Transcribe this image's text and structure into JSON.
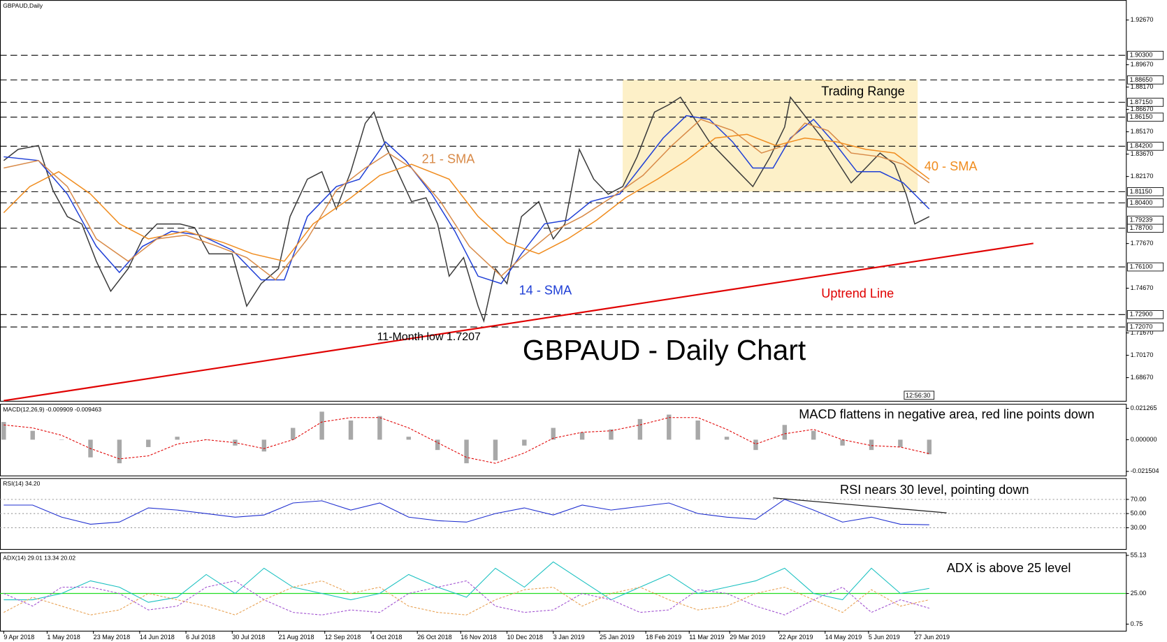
{
  "chart_data": [
    {
      "type": "line",
      "title": "GBPAUD,Daily",
      "heading": "GBPAUD - Daily Chart",
      "time": "12:56:30",
      "xlim": [
        0,
        388
      ],
      "xticks": [
        {
          "value": 0,
          "label": "9 Apr 2018"
        },
        {
          "value": 15,
          "label": "1 May 2018"
        },
        {
          "value": 31,
          "label": "23 May 2018"
        },
        {
          "value": 47,
          "label": "14 Jun 2018"
        },
        {
          "value": 63,
          "label": "6 Jul 2018"
        },
        {
          "value": 79,
          "label": "30 Jul 2018"
        },
        {
          "value": 95,
          "label": "21 Aug 2018"
        },
        {
          "value": 111,
          "label": "12 Sep 2018"
        },
        {
          "value": 127,
          "label": "4 Oct 2018"
        },
        {
          "value": 143,
          "label": "26 Oct 2018"
        },
        {
          "value": 158,
          "label": "16 Nov 2018"
        },
        {
          "value": 174,
          "label": "10 Dec 2018"
        },
        {
          "value": 190,
          "label": "3 Jan 2019"
        },
        {
          "value": 206,
          "label": "25 Jan 2019"
        },
        {
          "value": 222,
          "label": "18 Feb 2019"
        },
        {
          "value": 237,
          "label": "11 Mar 2019"
        },
        {
          "value": 251,
          "label": "29 Mar 2019"
        },
        {
          "value": 268,
          "label": "22 Apr 2019"
        },
        {
          "value": 284,
          "label": "14 May 2019"
        },
        {
          "value": 299,
          "label": "5 Jun 2019"
        },
        {
          "value": 315,
          "label": "27 Jun 2019"
        }
      ],
      "ylim": [
        1.6711,
        1.9401
      ],
      "yticks": [
        {
          "value": 1.6867,
          "label": "1.68670"
        },
        {
          "value": 1.7017,
          "label": "1.70170"
        },
        {
          "value": 1.7167,
          "label": "1.71670"
        },
        {
          "value": 1.7467,
          "label": "1.74670"
        },
        {
          "value": 1.7767,
          "label": "1.77670"
        },
        {
          "value": 1.8217,
          "label": "1.82170"
        },
        {
          "value": 1.8367,
          "label": "1.83670"
        },
        {
          "value": 1.8517,
          "label": "1.85170"
        },
        {
          "value": 1.8667,
          "label": "1.86670"
        },
        {
          "value": 1.8817,
          "label": "1.88170"
        },
        {
          "value": 1.8967,
          "label": "1.89670"
        },
        {
          "value": 1.9267,
          "label": "1.92670"
        }
      ],
      "levels": [
        {
          "value": 1.903,
          "label": "1.90300"
        },
        {
          "value": 1.8865,
          "label": "1.88650"
        },
        {
          "value": 1.8715,
          "label": "1.87150"
        },
        {
          "value": 1.8615,
          "label": "1.86150"
        },
        {
          "value": 1.842,
          "label": "1.84200"
        },
        {
          "value": 1.8115,
          "label": "1.81150"
        },
        {
          "value": 1.804,
          "label": "1.80400"
        },
        {
          "value": 1.787,
          "label": "1.78700"
        },
        {
          "value": 1.761,
          "label": "1.76100"
        },
        {
          "value": 1.729,
          "label": "1.72900"
        },
        {
          "value": 1.7207,
          "label": "1.72070"
        }
      ],
      "last_price": {
        "value": 1.79239,
        "label": "1.79239"
      },
      "series": [
        {
          "color": "#3a3a3a",
          "x": [
            0,
            5,
            12,
            17,
            22,
            27,
            32,
            37,
            43,
            48,
            53,
            61,
            66,
            71,
            79,
            84,
            89,
            95,
            99,
            105,
            110,
            115,
            120,
            125,
            128,
            132,
            135,
            141,
            146,
            150,
            154,
            159,
            164,
            166,
            170,
            174,
            179,
            185,
            190,
            194,
            199,
            204,
            209,
            214,
            219,
            225,
            230,
            234,
            239,
            244,
            249,
            254,
            259,
            265,
            270,
            272,
            277,
            283,
            288,
            293,
            298,
            303,
            308,
            312,
            315,
            320
          ],
          "values": [
            1.8324,
            1.8399,
            1.8424,
            1.8124,
            1.7948,
            1.7898,
            1.7648,
            1.7447,
            1.7598,
            1.7798,
            1.7898,
            1.7898,
            1.7873,
            1.7698,
            1.7698,
            1.7347,
            1.7498,
            1.7598,
            1.7948,
            1.8199,
            1.8249,
            1.7998,
            1.8249,
            1.8574,
            1.8649,
            1.8424,
            1.8299,
            1.8048,
            1.8074,
            1.7898,
            1.7548,
            1.7673,
            1.7347,
            1.7247,
            1.7598,
            1.7498,
            1.7948,
            1.8048,
            1.7798,
            1.7898,
            1.8399,
            1.8199,
            1.8098,
            1.8149,
            1.8349,
            1.8649,
            1.8699,
            1.8749,
            1.8599,
            1.8449,
            1.8349,
            1.8249,
            1.8149,
            1.8349,
            1.8549,
            1.8749,
            1.8624,
            1.8474,
            1.8324,
            1.8174,
            1.8274,
            1.8374,
            1.8299,
            1.8098,
            1.7898,
            1.7948
          ]
        },
        {
          "name": "14 - SMA",
          "color": "#1f3fd6",
          "x": [
            0,
            12,
            22,
            32,
            40,
            48,
            58,
            68,
            79,
            89,
            97,
            105,
            115,
            123,
            132,
            139,
            148,
            156,
            164,
            172,
            179,
            187,
            195,
            203,
            213,
            221,
            228,
            236,
            244,
            252,
            259,
            266,
            272,
            280,
            288,
            295,
            303,
            311,
            320
          ],
          "values": [
            1.8349,
            1.8324,
            1.8099,
            1.7748,
            1.7573,
            1.7748,
            1.7849,
            1.7823,
            1.7723,
            1.7523,
            1.7523,
            1.7949,
            1.8149,
            1.8199,
            1.8449,
            1.8324,
            1.8099,
            1.7849,
            1.7548,
            1.7498,
            1.7698,
            1.7899,
            1.7924,
            1.8049,
            1.8099,
            1.8299,
            1.8475,
            1.8625,
            1.86,
            1.8449,
            1.8274,
            1.8274,
            1.8475,
            1.86,
            1.8424,
            1.8249,
            1.8249,
            1.8174,
            1.7999
          ]
        },
        {
          "name": "21 - SMA",
          "color": "#d88a48",
          "x": [
            0,
            12,
            22,
            32,
            43,
            53,
            63,
            74,
            84,
            94,
            105,
            115,
            125,
            133,
            141,
            151,
            161,
            172,
            179,
            190,
            200,
            210,
            221,
            231,
            241,
            252,
            262,
            270,
            277,
            285,
            293,
            303,
            311,
            320
          ],
          "values": [
            1.8274,
            1.8324,
            1.8149,
            1.7798,
            1.7648,
            1.7798,
            1.7823,
            1.7748,
            1.7673,
            1.7523,
            1.7798,
            1.8124,
            1.8274,
            1.8374,
            1.8274,
            1.8049,
            1.7748,
            1.7548,
            1.7673,
            1.7849,
            1.7949,
            1.8074,
            1.8224,
            1.8424,
            1.86,
            1.8525,
            1.8374,
            1.8424,
            1.8575,
            1.8525,
            1.8374,
            1.8349,
            1.8299,
            1.8174
          ]
        },
        {
          "name": "40 - SMA",
          "color": "#f08c1e",
          "x": [
            0,
            9,
            19,
            30,
            40,
            50,
            63,
            76,
            86,
            97,
            107,
            120,
            130,
            141,
            154,
            164,
            174,
            185,
            195,
            205,
            215,
            226,
            236,
            246,
            257,
            267,
            277,
            288,
            298,
            308,
            320
          ],
          "values": [
            1.7974,
            1.8149,
            1.8249,
            1.8099,
            1.7899,
            1.7798,
            1.7849,
            1.7773,
            1.7698,
            1.7648,
            1.7899,
            1.8074,
            1.8224,
            1.8299,
            1.8199,
            1.7949,
            1.7773,
            1.7698,
            1.7798,
            1.7924,
            1.8074,
            1.8199,
            1.8324,
            1.8475,
            1.85,
            1.8424,
            1.8475,
            1.8449,
            1.8399,
            1.8374,
            1.8199
          ]
        }
      ],
      "trendline": {
        "color": "#e00000",
        "x": [
          0,
          356
        ],
        "values": [
          1.6712,
          1.7768
        ]
      },
      "range_box": {
        "color": "#fdf0c8",
        "x": [
          214,
          316
        ],
        "values": [
          1.8865,
          1.8115
        ]
      },
      "annotations": [
        "Trading Range",
        "Uptrend Line",
        "11-Month low 1.7207"
      ]
    },
    {
      "type": "bar",
      "title": "MACD(12,26,9) -0.009909 -0.009463",
      "note": "MACD flattens in negative area, red line points down",
      "ylim": [
        -0.0243,
        0.0243
      ],
      "yticks": [
        {
          "value": 0.021265,
          "label": "0.021265"
        },
        {
          "value": 0,
          "label": "0.000000"
        },
        {
          "value": -0.021504,
          "label": "-0.021504"
        }
      ],
      "x": [
        0,
        10,
        20,
        30,
        40,
        50,
        60,
        70,
        80,
        90,
        100,
        110,
        120,
        130,
        140,
        150,
        160,
        170,
        180,
        190,
        200,
        210,
        220,
        230,
        240,
        250,
        260,
        270,
        280,
        290,
        300,
        310,
        320
      ],
      "series": [
        {
          "kind": "bar",
          "color": "#a8a8a8",
          "values": [
            0.012,
            0.006,
            0,
            -0.012,
            -0.016,
            -0.005,
            0.002,
            0,
            -0.004,
            -0.008,
            0.008,
            0.019,
            0.013,
            0.016,
            0.002,
            -0.007,
            -0.016,
            -0.014,
            -0.004,
            0.008,
            0.005,
            0.007,
            0.014,
            0.017,
            0.013,
            0.002,
            -0.007,
            0.01,
            0.006,
            -0.004,
            -0.007,
            -0.005,
            -0.0099
          ]
        },
        {
          "kind": "line",
          "dash": true,
          "color": "#e00000",
          "values": [
            0.01,
            0.008,
            0.003,
            -0.006,
            -0.013,
            -0.011,
            -0.003,
            0,
            -0.002,
            -0.006,
            0,
            0.012,
            0.015,
            0.015,
            0.008,
            -0.002,
            -0.012,
            -0.016,
            -0.009,
            0.001,
            0.005,
            0.006,
            0.01,
            0.015,
            0.015,
            0.007,
            -0.003,
            0.004,
            0.007,
            0,
            -0.004,
            -0.005,
            -0.0095
          ]
        }
      ]
    },
    {
      "type": "line",
      "title": "RSI(14) 34.20",
      "note": "RSI nears 30 level, pointing down",
      "grid": true,
      "ylim": [
        0,
        100
      ],
      "yticks": [
        {
          "value": 70,
          "label": "70.00"
        },
        {
          "value": 50,
          "label": "50.00"
        },
        {
          "value": 30,
          "label": "30.00"
        }
      ],
      "x": [
        0,
        10,
        20,
        30,
        40,
        50,
        60,
        70,
        80,
        90,
        100,
        110,
        120,
        130,
        140,
        150,
        160,
        170,
        180,
        190,
        200,
        210,
        220,
        230,
        240,
        250,
        260,
        270,
        280,
        290,
        300,
        310,
        320
      ],
      "series": [
        {
          "color": "#1f2fd0",
          "values": [
            62,
            62,
            45,
            35,
            38,
            58,
            55,
            50,
            45,
            48,
            65,
            68,
            55,
            65,
            45,
            40,
            38,
            50,
            58,
            48,
            62,
            55,
            60,
            65,
            50,
            45,
            42,
            70,
            55,
            38,
            45,
            35,
            34.2
          ]
        }
      ],
      "trendline": {
        "color": "#222222",
        "x": [
          266,
          326
        ],
        "values": [
          72.1,
          51.1
        ]
      }
    },
    {
      "type": "line",
      "title": "ADX(14) 29.01 13.34 20.02",
      "note": "ADX is above 25 level",
      "ylim": [
        -4.5,
        57.5
      ],
      "yticks": [
        {
          "value": 55.13,
          "label": "55.13"
        },
        {
          "value": 25,
          "label": "25.00"
        },
        {
          "value": 0.75,
          "label": "0.75"
        }
      ],
      "hline": {
        "value": 25,
        "color": "#22dd22"
      },
      "x": [
        0,
        10,
        20,
        30,
        40,
        50,
        60,
        70,
        80,
        90,
        100,
        110,
        120,
        130,
        140,
        150,
        160,
        170,
        180,
        190,
        200,
        210,
        220,
        230,
        240,
        250,
        260,
        270,
        280,
        290,
        300,
        310,
        320
      ],
      "series": [
        {
          "color": "#18c0c0",
          "values": [
            20,
            20,
            25,
            35,
            30,
            18,
            22,
            40,
            25,
            45,
            30,
            25,
            20,
            25,
            40,
            30,
            22,
            45,
            30,
            50,
            35,
            20,
            30,
            40,
            25,
            30,
            35,
            45,
            25,
            20,
            45,
            25,
            29.01
          ]
        },
        {
          "dash": true,
          "color": "#a050d0",
          "values": [
            25,
            15,
            30,
            30,
            25,
            12,
            15,
            30,
            35,
            20,
            10,
            8,
            12,
            10,
            25,
            30,
            35,
            15,
            10,
            12,
            25,
            20,
            10,
            12,
            28,
            25,
            15,
            8,
            20,
            30,
            10,
            20,
            13.34
          ]
        },
        {
          "dash": true,
          "color": "#e8a050",
          "values": [
            10,
            22,
            15,
            8,
            12,
            25,
            20,
            15,
            8,
            20,
            30,
            35,
            25,
            30,
            15,
            10,
            8,
            20,
            28,
            30,
            15,
            25,
            30,
            20,
            12,
            15,
            25,
            30,
            20,
            10,
            28,
            15,
            20.02
          ]
        }
      ]
    }
  ]
}
